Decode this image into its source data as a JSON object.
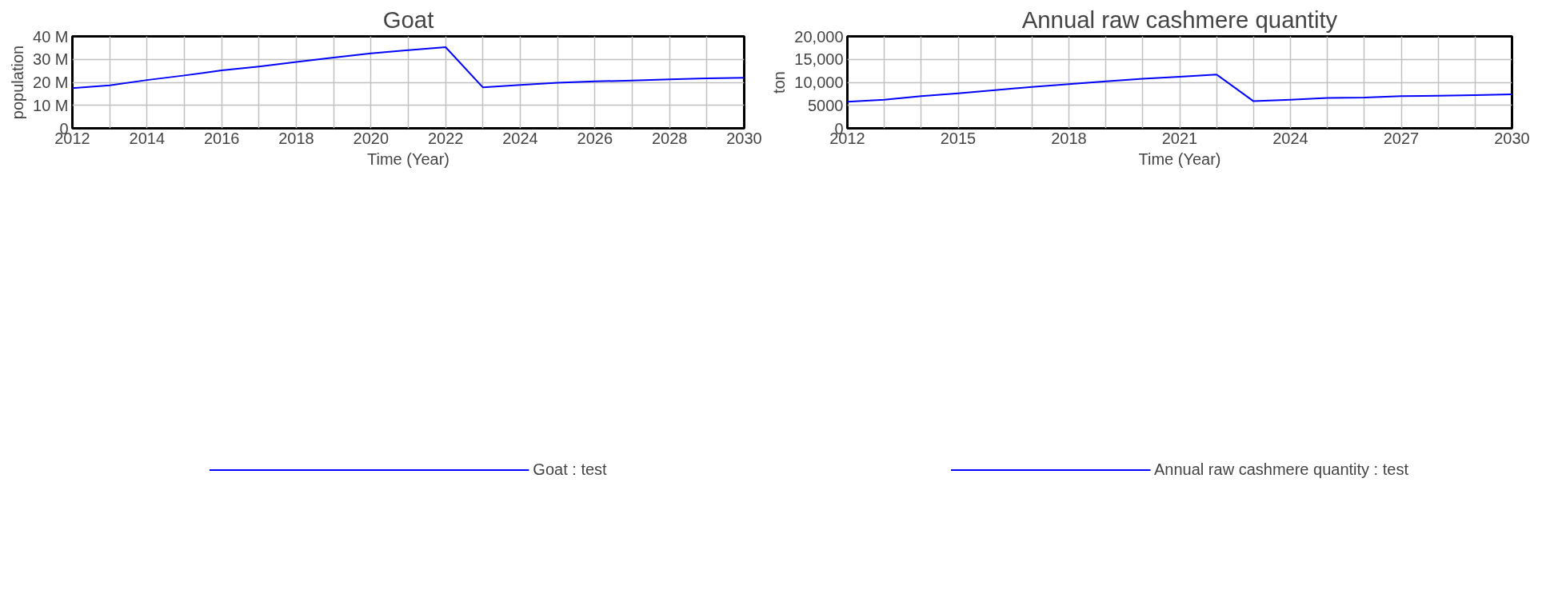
{
  "chart_data": [
    {
      "type": "line",
      "title": "Goat",
      "xlabel": "Time (Year)",
      "ylabel": "population",
      "x": [
        2012,
        2013,
        2014,
        2015,
        2016,
        2017,
        2018,
        2019,
        2020,
        2021,
        2022,
        2023,
        2024,
        2025,
        2026,
        2027,
        2028,
        2029,
        2030
      ],
      "series": [
        {
          "name": "Goat : test",
          "color": "#0000ff",
          "values": [
            17500000,
            18700000,
            21000000,
            23000000,
            25200000,
            26900000,
            28900000,
            30800000,
            32600000,
            34000000,
            35300000,
            17800000,
            18900000,
            19800000,
            20400000,
            20800000,
            21300000,
            21700000,
            22000000
          ]
        }
      ],
      "xlim": [
        2012,
        2030
      ],
      "xticks": [
        2012,
        {
          "value": 2013,
          "label": null
        },
        2014,
        {
          "value": 2015,
          "label": null
        },
        2016,
        {
          "value": 2017,
          "label": null
        },
        2018,
        {
          "value": 2019,
          "label": null
        },
        2020,
        {
          "value": 2021,
          "label": null
        },
        2022,
        {
          "value": 2023,
          "label": null
        },
        2024,
        {
          "value": 2025,
          "label": null
        },
        2026,
        {
          "value": 2027,
          "label": null
        },
        2028,
        {
          "value": 2029,
          "label": null
        },
        2030
      ],
      "ylim": [
        0,
        40000000
      ],
      "yticks": [
        {
          "value": 0,
          "label": "0"
        },
        {
          "value": 10000000,
          "label": "10 M"
        },
        {
          "value": 20000000,
          "label": "20 M"
        },
        {
          "value": 30000000,
          "label": "30 M"
        },
        {
          "value": 40000000,
          "label": "40 M"
        }
      ],
      "grid": true,
      "legend": "bottom",
      "marker": "none",
      "line_style": "solid"
    },
    {
      "type": "line",
      "title": "Annual raw cashmere quantity",
      "xlabel": "Time (Year)",
      "ylabel": "ton",
      "x": [
        2012,
        2013,
        2014,
        2015,
        2016,
        2017,
        2018,
        2019,
        2020,
        2021,
        2022,
        2023,
        2024,
        2025,
        2026,
        2027,
        2028,
        2029,
        2030
      ],
      "series": [
        {
          "name": "Annual raw cashmere quantity : test",
          "color": "#0000ff",
          "values": [
            5800,
            6200,
            7000,
            7600,
            8300,
            9000,
            9600,
            10200,
            10800,
            11200,
            11700,
            5900,
            6200,
            6600,
            6700,
            7000,
            7100,
            7200,
            7400
          ]
        }
      ],
      "xlim": [
        2012,
        2030
      ],
      "xticks": [
        2012,
        {
          "value": 2013,
          "label": null
        },
        {
          "value": 2014,
          "label": null
        },
        2015,
        {
          "value": 2016,
          "label": null
        },
        {
          "value": 2017,
          "label": null
        },
        2018,
        {
          "value": 2019,
          "label": null
        },
        {
          "value": 2020,
          "label": null
        },
        2021,
        {
          "value": 2022,
          "label": null
        },
        {
          "value": 2023,
          "label": null
        },
        2024,
        {
          "value": 2025,
          "label": null
        },
        {
          "value": 2026,
          "label": null
        },
        2027,
        {
          "value": 2028,
          "label": null
        },
        {
          "value": 2029,
          "label": null
        },
        2030
      ],
      "ylim": [
        0,
        20000
      ],
      "yticks": [
        0,
        5000,
        {
          "value": 10000,
          "label": "10,000"
        },
        {
          "value": 15000,
          "label": "15,000"
        },
        {
          "value": 20000,
          "label": "20,000"
        }
      ],
      "grid": true,
      "legend": "bottom",
      "marker": "none",
      "line_style": "solid"
    }
  ]
}
